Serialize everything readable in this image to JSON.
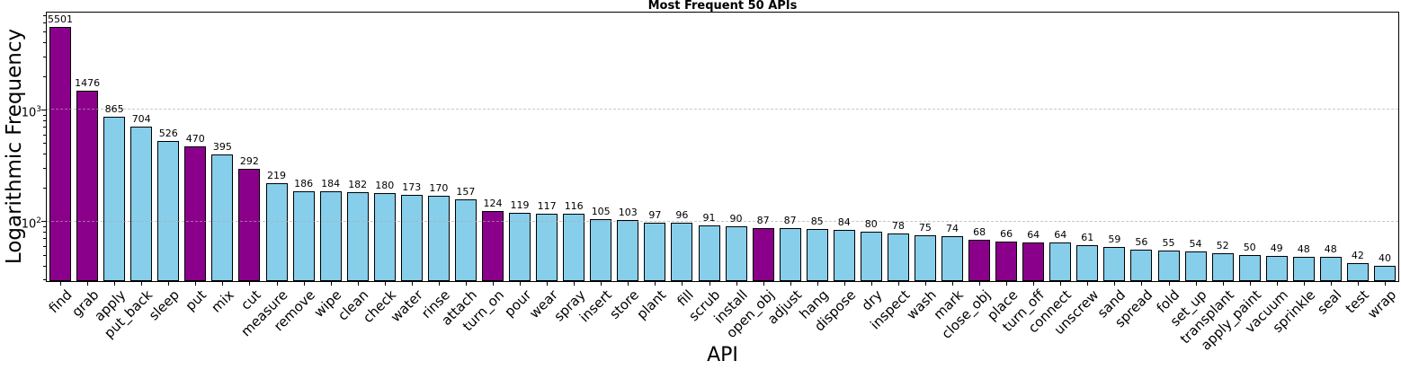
{
  "chart_data": {
    "type": "bar",
    "title": "Most Frequent 50 APIs",
    "xlabel": "API",
    "ylabel": "Logarithmic Frequency",
    "yscale": "log",
    "ylim": [
      29,
      7400
    ],
    "grid": "horizontal dashed lines at major ticks, drawn over bars",
    "legend": "none",
    "bar_value_labels_shown": true,
    "yticks": [
      {
        "base": "10",
        "exp": "3",
        "value": 1000
      },
      {
        "base": "10",
        "exp": "2",
        "value": 100
      }
    ],
    "categories": [
      "find",
      "grab",
      "apply",
      "put_back",
      "sleep",
      "put",
      "mix",
      "cut",
      "measure",
      "remove",
      "wipe",
      "clean",
      "check",
      "water",
      "rinse",
      "attach",
      "turn_on",
      "pour",
      "wear",
      "spray",
      "insert",
      "store",
      "plant",
      "fill",
      "scrub",
      "install",
      "open_obj",
      "adjust",
      "hang",
      "dispose",
      "dry",
      "inspect",
      "wash",
      "mark",
      "close_obj",
      "place",
      "turn_off",
      "connect",
      "unscrew",
      "sand",
      "spread",
      "fold",
      "set_up",
      "transplant",
      "apply_paint",
      "vacuum",
      "sprinkle",
      "seal",
      "test",
      "wrap"
    ],
    "values": [
      5501,
      1476,
      865,
      704,
      526,
      470,
      395,
      292,
      219,
      186,
      184,
      182,
      180,
      173,
      170,
      157,
      124,
      119,
      117,
      116,
      105,
      103,
      97,
      96,
      91,
      90,
      87,
      87,
      85,
      84,
      80,
      78,
      75,
      74,
      68,
      66,
      64,
      64,
      61,
      59,
      56,
      55,
      54,
      52,
      50,
      49,
      48,
      48,
      42,
      40
    ],
    "highlighted_categories": [
      "find",
      "grab",
      "put",
      "cut",
      "turn_on",
      "open_obj",
      "close_obj",
      "place",
      "turn_off"
    ],
    "colors": {
      "bar_default": "#87CEEB",
      "bar_highlight": "#8B008B",
      "bar_edge": "#000000",
      "grid": "#aaaaaa",
      "background": "#ffffff",
      "text": "#000000"
    }
  }
}
